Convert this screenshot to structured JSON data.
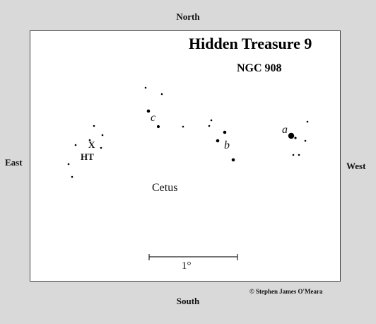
{
  "compass": {
    "north": "North",
    "south": "South",
    "east": "East",
    "west": "West"
  },
  "chart": {
    "title": "Hidden Treasure 9",
    "subtitle": "NGC 908",
    "constellation": "Cetus",
    "scale_label": "1°",
    "copyright": "© Stephen James O'Meara",
    "labels": {
      "a": "a",
      "b": "b",
      "c": "c",
      "target_marker": "X",
      "target_label": "HT"
    }
  }
}
